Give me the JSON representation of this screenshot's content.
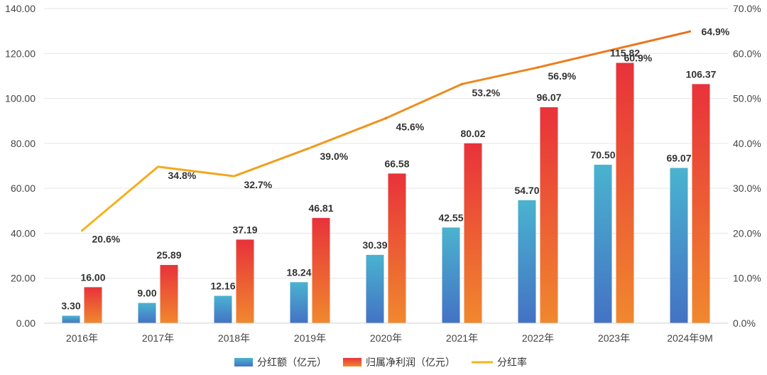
{
  "chart_data": {
    "type": "bar+line",
    "categories": [
      "2016年",
      "2017年",
      "2018年",
      "2019年",
      "2020年",
      "2021年",
      "2022年",
      "2023年",
      "2024年9M"
    ],
    "series": [
      {
        "name": "分红额（亿元）",
        "type": "bar",
        "axis": "left",
        "values": [
          3.3,
          9.0,
          12.16,
          18.24,
          30.39,
          42.55,
          54.7,
          70.5,
          69.07
        ],
        "labels": [
          "3.30",
          "9.00",
          "12.16",
          "18.24",
          "30.39",
          "42.55",
          "54.70",
          "70.50",
          "69.07"
        ],
        "color_top": "#4AB3CF",
        "color_bottom": "#4472C4"
      },
      {
        "name": "归属净利润（亿元）",
        "type": "bar",
        "axis": "left",
        "values": [
          16.0,
          25.89,
          37.19,
          46.81,
          66.58,
          80.02,
          96.07,
          115.82,
          106.37
        ],
        "labels": [
          "16.00",
          "25.89",
          "37.19",
          "46.81",
          "66.58",
          "80.02",
          "96.07",
          "115.82",
          "106.37"
        ],
        "color_top": "#E8323A",
        "color_bottom": "#F0882E"
      },
      {
        "name": "分红率",
        "type": "line",
        "axis": "right",
        "values": [
          20.6,
          34.8,
          32.7,
          39.0,
          45.6,
          53.2,
          56.9,
          60.9,
          64.9
        ],
        "labels": [
          "20.6%",
          "34.8%",
          "32.7%",
          "39.0%",
          "45.6%",
          "53.2%",
          "56.9%",
          "60.9%",
          "64.9%"
        ],
        "color_start": "#F5B41E",
        "color_end": "#E8701E"
      }
    ],
    "y_left": {
      "range": [
        0,
        140
      ],
      "ticks": [
        0,
        20,
        40,
        60,
        80,
        100,
        120,
        140
      ],
      "tick_labels": [
        "0.00",
        "20.00",
        "40.00",
        "60.00",
        "80.00",
        "100.00",
        "120.00",
        "140.00"
      ]
    },
    "y_right": {
      "range": [
        0,
        70
      ],
      "ticks": [
        0,
        10,
        20,
        30,
        40,
        50,
        60,
        70
      ],
      "tick_labels": [
        "0.0%",
        "10.0%",
        "20.0%",
        "30.0%",
        "40.0%",
        "50.0%",
        "60.0%",
        "70.0%"
      ]
    },
    "grid": true,
    "legend_position": "bottom"
  }
}
